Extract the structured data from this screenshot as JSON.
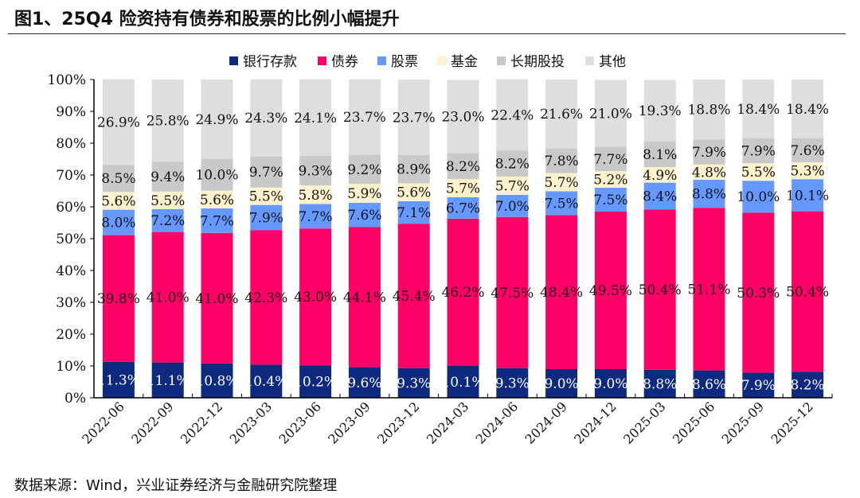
{
  "title": "图1、25Q4 险资持有债券和股票的比例小幅提升",
  "source": "数据来源：Wind，兴业证券经济与金融研究院整理",
  "chart_data": {
    "type": "bar",
    "stacked": true,
    "title": "图1、25Q4 险资持有债券和股票的比例小幅提升",
    "ylim": [
      0,
      100
    ],
    "yticks": [
      "0%",
      "10%",
      "20%",
      "30%",
      "40%",
      "50%",
      "60%",
      "70%",
      "80%",
      "90%",
      "100%"
    ],
    "legend_position": "top",
    "categories": [
      "2022-06",
      "2022-09",
      "2022-12",
      "2023-03",
      "2023-06",
      "2023-09",
      "2023-12",
      "2024-03",
      "2024-06",
      "2024-09",
      "2024-12",
      "2025-03",
      "2025-06",
      "2025-09",
      "2025-12"
    ],
    "series": [
      {
        "name": "银行存款",
        "color": "#0d2a80",
        "label_color": "#ffffff",
        "values": [
          11.3,
          11.1,
          10.8,
          10.4,
          10.2,
          9.6,
          9.3,
          10.1,
          9.3,
          9.0,
          9.0,
          8.8,
          8.6,
          7.9,
          8.2
        ]
      },
      {
        "name": "债券",
        "color": "#ff0066",
        "label_color": "#111111",
        "values": [
          39.8,
          41.0,
          41.0,
          42.3,
          43.0,
          44.1,
          45.4,
          46.2,
          47.5,
          48.4,
          49.5,
          50.4,
          51.1,
          50.3,
          50.4
        ]
      },
      {
        "name": "股票",
        "color": "#6699ff",
        "label_color": "#111111",
        "values": [
          8.0,
          7.2,
          7.7,
          7.9,
          7.7,
          7.6,
          7.1,
          6.7,
          7.0,
          7.5,
          7.5,
          8.4,
          8.8,
          10.0,
          10.1
        ]
      },
      {
        "name": "基金",
        "color": "#fff2cc",
        "label_color": "#111111",
        "values": [
          5.6,
          5.5,
          5.6,
          5.5,
          5.8,
          5.9,
          5.6,
          5.7,
          5.7,
          5.7,
          5.2,
          4.9,
          4.8,
          5.5,
          5.3
        ]
      },
      {
        "name": "长期股投",
        "color": "#c9c9c9",
        "label_color": "#111111",
        "values": [
          8.5,
          9.4,
          10.0,
          9.7,
          9.3,
          9.2,
          8.9,
          8.2,
          8.2,
          7.8,
          7.7,
          8.1,
          7.9,
          7.9,
          7.6
        ]
      },
      {
        "name": "其他",
        "color": "#dedede",
        "label_color": "#111111",
        "values": [
          26.9,
          25.8,
          24.9,
          24.3,
          24.1,
          23.7,
          23.7,
          23.0,
          22.4,
          21.6,
          21.0,
          19.3,
          18.8,
          18.4,
          18.4
        ]
      }
    ]
  }
}
